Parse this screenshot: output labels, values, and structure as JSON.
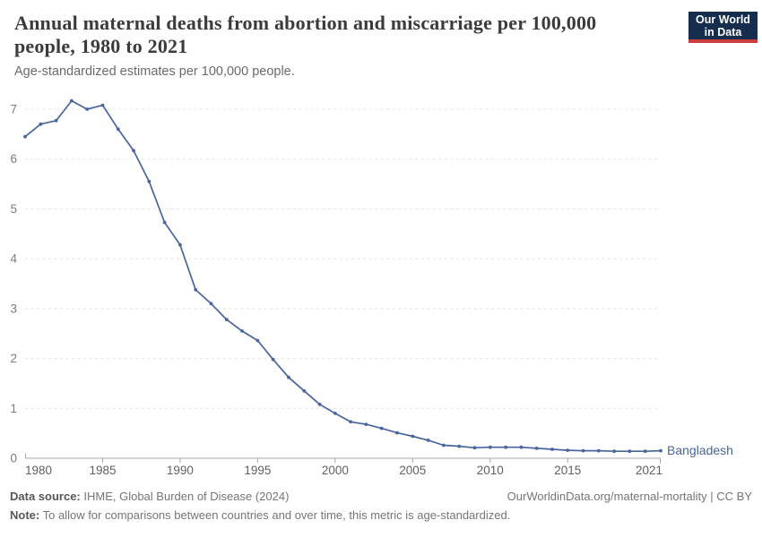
{
  "header": {
    "title_lines": [
      "Annual maternal deaths from abortion and miscarriage per 100,000",
      "people, 1980 to 2021"
    ],
    "subtitle": "Age-standardized estimates per 100,000 people."
  },
  "logo": {
    "lines": [
      "Our World",
      "in Data"
    ],
    "bg_color": "#162d4d",
    "bar_color": "#cd3c3c"
  },
  "chart_data": {
    "type": "line",
    "title": "Annual maternal deaths from abortion and miscarriage per 100,000 people, 1980 to 2021",
    "subtitle": "Age-standardized estimates per 100,000 people.",
    "xlabel": "",
    "ylabel": "",
    "x": [
      1980,
      1981,
      1982,
      1983,
      1984,
      1985,
      1986,
      1987,
      1988,
      1989,
      1990,
      1991,
      1992,
      1993,
      1994,
      1995,
      1996,
      1997,
      1998,
      1999,
      2000,
      2001,
      2002,
      2003,
      2004,
      2005,
      2006,
      2007,
      2008,
      2009,
      2010,
      2011,
      2012,
      2013,
      2014,
      2015,
      2016,
      2017,
      2018,
      2019,
      2020,
      2021
    ],
    "series": [
      {
        "name": "Bangladesh",
        "color": "#48659e",
        "values": [
          6.45,
          6.7,
          6.77,
          7.17,
          7.0,
          7.08,
          6.6,
          6.17,
          5.55,
          4.73,
          4.28,
          3.38,
          3.1,
          2.78,
          2.55,
          2.36,
          1.98,
          1.62,
          1.35,
          1.08,
          0.9,
          0.73,
          0.68,
          0.6,
          0.51,
          0.44,
          0.36,
          0.26,
          0.24,
          0.21,
          0.22,
          0.22,
          0.22,
          0.2,
          0.18,
          0.16,
          0.15,
          0.15,
          0.14,
          0.14,
          0.14,
          0.15
        ]
      }
    ],
    "xlim": [
      1980,
      2021
    ],
    "ylim": [
      0,
      7.3
    ],
    "yticks": [
      0,
      1,
      2,
      3,
      4,
      5,
      6,
      7
    ],
    "xticks": [
      1980,
      1985,
      1990,
      1995,
      2000,
      2005,
      2010,
      2015,
      2021
    ],
    "grid": "horizontal-dashed",
    "legend_position": "end-of-line-label",
    "entity_label": "Bangladesh"
  },
  "colors": {
    "line": "#48659e",
    "grid": "#e4e4e4",
    "axis": "#a8a8a8",
    "xtick_label": "#606060",
    "ytick_label": "#7b7b7b"
  },
  "footer": {
    "source_label": "Data source:",
    "source_text": "IHME, Global Burden of Disease (2024)",
    "link_text": "OurWorldinData.org/maternal-mortality | CC BY",
    "note_label": "Note:",
    "note_text": "To allow for comparisons between countries and over time, this metric is age-standardized."
  }
}
